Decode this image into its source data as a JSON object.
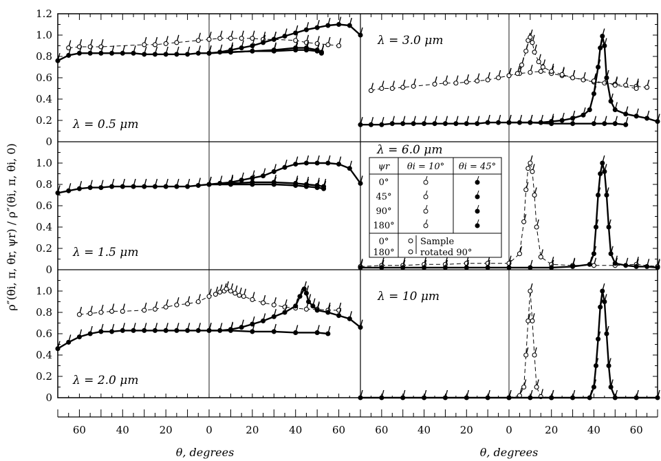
{
  "chart_data": {
    "type": "scatter",
    "description_text": {
      "ylabel": "ρ″(θi, π, θr, ψr) / ρ″(θi, π, θi, 0)",
      "xlabel_left": "θ, degrees",
      "xlabel_right": "θ, degrees"
    },
    "ylim": [
      0,
      1.2
    ],
    "yticks_top": [
      "1.2",
      "1.0",
      "0.8",
      "0.6",
      "0.4",
      "0.2",
      "0"
    ],
    "yticks_mid": [
      "1.0",
      "0.8",
      "0.6",
      "0.4",
      "0.2",
      "0"
    ],
    "yticks_bot": [
      "1.0",
      "0.8",
      "0.6",
      "0.4",
      "0.2",
      "0"
    ],
    "xtick_labels_left": [
      "60",
      "40",
      "20",
      "0",
      "20",
      "40",
      "60"
    ],
    "xtick_labels_right": [
      "60",
      "40",
      "20",
      "0",
      "20",
      "40",
      "60"
    ],
    "xtick_values_left": [
      -60,
      -40,
      -20,
      0,
      20,
      40,
      60
    ],
    "xtick_values_right": [
      -60,
      -40,
      -20,
      0,
      20,
      40,
      60
    ],
    "xlim": [
      -70,
      70
    ],
    "panels": [
      {
        "id": "lam05",
        "label": "λ = 0.5 μm",
        "row": 0,
        "col": 0,
        "series": [
          {
            "marker": "open",
            "dashed": true,
            "x": [
              -65,
              -60,
              -55,
              -50,
              -30,
              -25,
              -20,
              -15,
              -5,
              0,
              5,
              10,
              15,
              20,
              25,
              30,
              40,
              45,
              50,
              55,
              60
            ],
            "y": [
              0.88,
              0.89,
              0.89,
              0.89,
              0.91,
              0.91,
              0.92,
              0.93,
              0.95,
              0.96,
              0.97,
              0.97,
              0.97,
              0.97,
              0.96,
              0.96,
              0.95,
              0.93,
              0.92,
              0.91,
              0.9
            ]
          },
          {
            "marker": "filled",
            "dashed": false,
            "x": [
              -70,
              -65,
              -60,
              -55,
              -50,
              -45,
              -40,
              -35,
              -30,
              -25,
              -20,
              -15,
              -10,
              -5,
              0,
              5,
              10,
              15,
              20,
              25,
              30,
              35,
              40,
              45,
              50,
              55,
              60,
              65,
              70
            ],
            "y": [
              0.76,
              0.81,
              0.83,
              0.83,
              0.83,
              0.83,
              0.83,
              0.83,
              0.82,
              0.82,
              0.82,
              0.82,
              0.82,
              0.83,
              0.83,
              0.84,
              0.86,
              0.88,
              0.9,
              0.93,
              0.96,
              0.99,
              1.02,
              1.05,
              1.07,
              1.09,
              1.1,
              1.09,
              1.0
            ]
          },
          {
            "marker": "filled",
            "dashed": false,
            "x": [
              0,
              10,
              20,
              30,
              40,
              45,
              50,
              52
            ],
            "y": [
              0.83,
              0.84,
              0.85,
              0.86,
              0.88,
              0.88,
              0.86,
              0.84
            ]
          },
          {
            "marker": "filled",
            "dashed": false,
            "x": [
              0,
              10,
              20,
              30,
              40,
              45,
              50,
              52
            ],
            "y": [
              0.83,
              0.84,
              0.85,
              0.85,
              0.86,
              0.86,
              0.85,
              0.83
            ]
          }
        ]
      },
      {
        "id": "lam30",
        "label": "λ = 3.0 μm",
        "row": 0,
        "col": 1,
        "series": [
          {
            "marker": "open",
            "dashed": true,
            "x": [
              -65,
              -60,
              -55,
              -50,
              -45,
              -35,
              -30,
              -25,
              -20,
              -15,
              -10,
              -5,
              0,
              5,
              10,
              15,
              20,
              25,
              30,
              35,
              40,
              45,
              50,
              55,
              60,
              65
            ],
            "y": [
              0.48,
              0.5,
              0.5,
              0.51,
              0.52,
              0.54,
              0.55,
              0.55,
              0.56,
              0.57,
              0.58,
              0.6,
              0.62,
              0.64,
              0.65,
              0.66,
              0.64,
              0.62,
              0.6,
              0.58,
              0.56,
              0.55,
              0.54,
              0.53,
              0.52,
              0.51
            ]
          },
          {
            "marker": "open",
            "dashed": true,
            "x": [
              0,
              4,
              6,
              8,
              9,
              10,
              11,
              12,
              14,
              16,
              20,
              25,
              30,
              40,
              50,
              60
            ],
            "y": [
              0.62,
              0.64,
              0.72,
              0.85,
              0.95,
              0.98,
              0.93,
              0.84,
              0.75,
              0.7,
              0.66,
              0.63,
              0.6,
              0.57,
              0.53,
              0.5
            ]
          },
          {
            "marker": "filled",
            "dashed": false,
            "x": [
              -70,
              -65,
              -60,
              -55,
              -50,
              -45,
              -40,
              -35,
              -30,
              -25,
              -20,
              -15,
              -10,
              -5,
              0,
              5,
              10,
              15,
              20,
              25,
              30,
              35,
              38,
              40,
              42,
              43,
              44,
              45,
              46,
              48,
              50,
              55,
              60,
              65,
              70
            ],
            "y": [
              0.16,
              0.16,
              0.16,
              0.17,
              0.17,
              0.17,
              0.17,
              0.17,
              0.17,
              0.17,
              0.17,
              0.17,
              0.18,
              0.18,
              0.18,
              0.18,
              0.18,
              0.18,
              0.19,
              0.2,
              0.22,
              0.25,
              0.3,
              0.45,
              0.7,
              0.88,
              0.99,
              0.9,
              0.6,
              0.38,
              0.3,
              0.26,
              0.24,
              0.22,
              0.19
            ]
          },
          {
            "marker": "filled",
            "dashed": false,
            "x": [
              0,
              10,
              20,
              30,
              40,
              45,
              50,
              55
            ],
            "y": [
              0.18,
              0.18,
              0.17,
              0.17,
              0.17,
              0.17,
              0.17,
              0.16
            ]
          }
        ]
      },
      {
        "id": "lam15",
        "label": "λ = 1.5 μm",
        "row": 1,
        "col": 0,
        "series": [
          {
            "marker": "filled",
            "dashed": false,
            "x": [
              -70,
              -65,
              -60,
              -55,
              -50,
              -45,
              -40,
              -35,
              -30,
              -25,
              -20,
              -15,
              -10,
              -5,
              0,
              5,
              10,
              15,
              20,
              25,
              30,
              35,
              40,
              45,
              50,
              55,
              60,
              65,
              70
            ],
            "y": [
              0.72,
              0.74,
              0.76,
              0.77,
              0.77,
              0.78,
              0.78,
              0.78,
              0.78,
              0.78,
              0.78,
              0.78,
              0.78,
              0.79,
              0.8,
              0.81,
              0.82,
              0.84,
              0.86,
              0.88,
              0.92,
              0.96,
              0.99,
              1.0,
              1.0,
              1.0,
              0.99,
              0.95,
              0.81
            ]
          },
          {
            "marker": "filled",
            "dashed": false,
            "x": [
              0,
              10,
              20,
              30,
              40,
              45,
              50,
              53
            ],
            "y": [
              0.8,
              0.81,
              0.82,
              0.82,
              0.81,
              0.8,
              0.79,
              0.78
            ]
          },
          {
            "marker": "filled",
            "dashed": false,
            "x": [
              0,
              10,
              20,
              30,
              40,
              45,
              50,
              53
            ],
            "y": [
              0.8,
              0.8,
              0.8,
              0.8,
              0.79,
              0.78,
              0.77,
              0.76
            ]
          }
        ]
      },
      {
        "id": "lam60",
        "label": "λ = 6.0 μm",
        "row": 1,
        "col": 1,
        "series": [
          {
            "marker": "open",
            "dashed": true,
            "x": [
              -70,
              -60,
              -50,
              -40,
              -30,
              -20,
              -10,
              0,
              5,
              7,
              8,
              9,
              10,
              11,
              12,
              13,
              15,
              20,
              30,
              40,
              50,
              60,
              70
            ],
            "y": [
              0.03,
              0.04,
              0.04,
              0.05,
              0.05,
              0.06,
              0.06,
              0.06,
              0.15,
              0.45,
              0.75,
              0.95,
              1.0,
              0.92,
              0.7,
              0.4,
              0.12,
              0.05,
              0.04,
              0.04,
              0.04,
              0.05,
              0.03
            ]
          },
          {
            "marker": "filled",
            "dashed": false,
            "x": [
              -70,
              -60,
              -50,
              -40,
              -30,
              -20,
              -10,
              0,
              10,
              20,
              30,
              38,
              40,
              41,
              42,
              43,
              44,
              45,
              46,
              47,
              48,
              50,
              55,
              60,
              65,
              70
            ],
            "y": [
              0.02,
              0.02,
              0.02,
              0.02,
              0.02,
              0.02,
              0.02,
              0.02,
              0.02,
              0.02,
              0.03,
              0.05,
              0.15,
              0.4,
              0.7,
              0.9,
              1.0,
              0.92,
              0.7,
              0.4,
              0.15,
              0.06,
              0.04,
              0.03,
              0.03,
              0.02
            ]
          }
        ],
        "legend": {
          "title": "λ = 6.0 μm",
          "header": [
            "ψr",
            "θi = 10°",
            "θi = 45°"
          ],
          "rows": [
            "0°",
            "45°",
            "90°",
            "180°"
          ],
          "rotated_rows": [
            "0°",
            "180°"
          ],
          "rotated_note": [
            "Sample",
            "rotated 90°"
          ]
        }
      },
      {
        "id": "lam20",
        "label": "λ = 2.0 μm",
        "row": 2,
        "col": 0,
        "series": [
          {
            "marker": "open",
            "dashed": true,
            "x": [
              -60,
              -55,
              -50,
              -45,
              -40,
              -30,
              -25,
              -20,
              -15,
              -10,
              -5,
              0,
              3,
              5,
              7,
              8,
              10,
              12,
              14,
              16,
              20,
              25,
              30,
              35,
              40,
              45,
              50,
              55,
              60
            ],
            "y": [
              0.78,
              0.79,
              0.8,
              0.81,
              0.81,
              0.82,
              0.83,
              0.85,
              0.87,
              0.88,
              0.9,
              0.95,
              0.97,
              0.99,
              1.0,
              1.02,
              1.0,
              0.98,
              0.96,
              0.95,
              0.92,
              0.89,
              0.87,
              0.85,
              0.84,
              0.83,
              0.83,
              0.82,
              0.82
            ]
          },
          {
            "marker": "filled",
            "dashed": false,
            "x": [
              -70,
              -65,
              -60,
              -55,
              -50,
              -45,
              -40,
              -35,
              -30,
              -25,
              -20,
              -15,
              -10,
              -5,
              0,
              5,
              10,
              15,
              20,
              25,
              30,
              35,
              40,
              42,
              44,
              45,
              46,
              48,
              50,
              55,
              60,
              65,
              70
            ],
            "y": [
              0.46,
              0.52,
              0.57,
              0.6,
              0.62,
              0.62,
              0.63,
              0.63,
              0.63,
              0.63,
              0.63,
              0.63,
              0.63,
              0.63,
              0.63,
              0.63,
              0.64,
              0.66,
              0.69,
              0.72,
              0.76,
              0.8,
              0.86,
              0.95,
              1.02,
              0.98,
              0.9,
              0.86,
              0.82,
              0.8,
              0.77,
              0.74,
              0.66
            ]
          },
          {
            "marker": "filled",
            "dashed": false,
            "x": [
              0,
              10,
              20,
              30,
              40,
              50,
              55
            ],
            "y": [
              0.63,
              0.63,
              0.62,
              0.62,
              0.61,
              0.61,
              0.6
            ]
          }
        ]
      },
      {
        "id": "lam10",
        "label": "λ = 10 μm",
        "row": 2,
        "col": 1,
        "series": [
          {
            "marker": "open",
            "dashed": true,
            "x": [
              0,
              5,
              7,
              8,
              9,
              10,
              11,
              12,
              13,
              15,
              20
            ],
            "y": [
              0.0,
              0.02,
              0.1,
              0.4,
              0.72,
              1.0,
              0.72,
              0.4,
              0.1,
              0.01,
              0.0
            ]
          },
          {
            "marker": "filled",
            "dashed": false,
            "x": [
              -70,
              -60,
              -50,
              -40,
              -30,
              -20,
              -10,
              0,
              10,
              20,
              30,
              38,
              40,
              41,
              42,
              43,
              44,
              45,
              46,
              47,
              48,
              50,
              60,
              70
            ],
            "y": [
              0,
              0,
              0,
              0,
              0,
              0,
              0,
              0,
              0,
              0,
              0,
              0.0,
              0.1,
              0.3,
              0.55,
              0.85,
              1.0,
              0.9,
              0.6,
              0.3,
              0.1,
              0.0,
              0,
              0
            ]
          }
        ]
      }
    ]
  }
}
